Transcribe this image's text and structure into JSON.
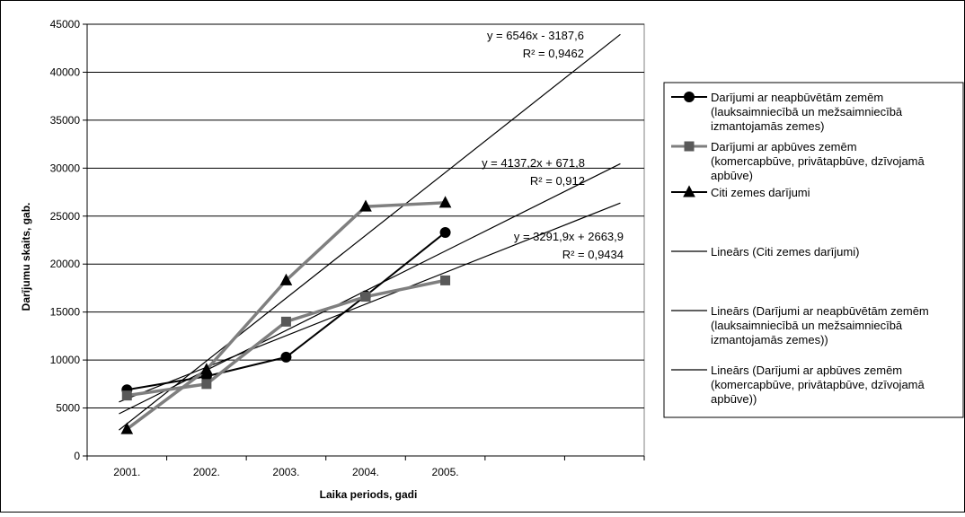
{
  "chart_data": {
    "type": "line",
    "title": "",
    "xlabel": "Laika periods, gadi",
    "ylabel": "Darījumu skaits, gab.",
    "categories": [
      "2001.",
      "2002.",
      "2003.",
      "2004.",
      "2005."
    ],
    "ylim": [
      0,
      45000
    ],
    "yticks": [
      "0",
      "5000",
      "10000",
      "15000",
      "20000",
      "25000",
      "30000",
      "35000",
      "40000",
      "45000"
    ],
    "grid": true,
    "legend_position": "right",
    "series": [
      {
        "name": "Darījumi ar neapbūvētām zemēm (lauksaimniecībā un mežsaimniecībā izmantojamās zemes)",
        "legend_lines": [
          "Darījumi ar neapbūvētām zemēm",
          "(lauksaimniecībā un mežsaimniecībā",
          "izmantojamās zemes)"
        ],
        "marker": "circle",
        "color": "#000000",
        "values": [
          6900,
          8300,
          10300,
          16700,
          23300
        ]
      },
      {
        "name": "Darījumi ar apbūves zemēm (komercapbūve, privātapbūve, dzīvojamā apbūve)",
        "legend_lines": [
          "Darījumi ar apbūves zemēm",
          "(komercapbūve, privātapbūve, dzīvojamā",
          "apbūve)"
        ],
        "marker": "square",
        "color": "#595959",
        "values": [
          6300,
          7500,
          14000,
          16600,
          18300
        ]
      },
      {
        "name": "Citi zemes darījumi",
        "legend_lines": [
          "Citi zemes darījumi"
        ],
        "marker": "triangle",
        "color": "#000000",
        "values": [
          2800,
          9000,
          18300,
          26000,
          26400
        ]
      }
    ],
    "trendlines": [
      {
        "name": "Lineārs (Citi zemes darījumi)",
        "legend_lines": [
          "Lineārs (Citi zemes darījumi)"
        ],
        "slope": 6546,
        "intercept": -3187.6,
        "equation": "y = 6546x - 3187,6",
        "r2": "R² = 0,9462"
      },
      {
        "name": "Lineārs (Darījumi ar neapbūvētām zemēm (lauksaimniecībā un mežsaimniecībā izmantojamās zemes))",
        "legend_lines": [
          "Lineārs (Darījumi ar neapbūvētām zemēm",
          "(lauksaimniecībā un mežsaimniecībā",
          "izmantojamās zemes))"
        ],
        "slope": 4137.2,
        "intercept": 671.8,
        "equation": "y = 4137,2x + 671,8",
        "r2": "R² = 0,912"
      },
      {
        "name": "Lineārs (Darījumi ar apbūves zemēm (komercapbūve, privātapbūve, dzīvojamā apbūve))",
        "legend_lines": [
          "Lineārs (Darījumi ar apbūves zemēm",
          "(komercapbūve, privātapbūve, dzīvojamā",
          "apbūve))"
        ],
        "slope": 3291.9,
        "intercept": 2663.9,
        "equation": "y = 3291,9x + 2663,9",
        "r2": "R² = 0,9434"
      }
    ]
  }
}
